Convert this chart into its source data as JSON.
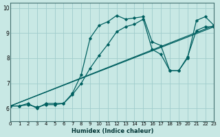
{
  "xlabel": "Humidex (Indice chaleur)",
  "xlim": [
    0,
    23
  ],
  "ylim": [
    5.5,
    10.2
  ],
  "xticks": [
    0,
    1,
    2,
    3,
    4,
    5,
    6,
    7,
    8,
    9,
    10,
    11,
    12,
    13,
    14,
    15,
    16,
    17,
    18,
    19,
    20,
    21,
    22,
    23
  ],
  "yticks": [
    6,
    7,
    8,
    9,
    10
  ],
  "bg_color": "#c8e8e4",
  "grid_color": "#a0cccc",
  "line_color": "#006060",
  "lines": [
    {
      "x": [
        0,
        1,
        2,
        3,
        4,
        5,
        6,
        7,
        8,
        9,
        10,
        11,
        12,
        13,
        14,
        15,
        16,
        17,
        18,
        19,
        20,
        21,
        22,
        23
      ],
      "y": [
        6.1,
        6.1,
        6.2,
        6.0,
        6.2,
        6.2,
        6.2,
        6.6,
        7.35,
        8.8,
        9.3,
        9.45,
        9.7,
        9.55,
        9.6,
        9.65,
        8.65,
        8.5,
        7.5,
        7.5,
        8.0,
        9.5,
        9.65,
        9.3
      ]
    },
    {
      "x": [
        0,
        1,
        2,
        3,
        4,
        5,
        6,
        7,
        8,
        9,
        10,
        11,
        12,
        13,
        14,
        15,
        16,
        17,
        18,
        19,
        20,
        21,
        22,
        23
      ],
      "y": [
        6.1,
        6.1,
        6.15,
        6.05,
        6.15,
        6.15,
        6.2,
        6.55,
        7.0,
        7.6,
        8.1,
        8.55,
        9.05,
        9.25,
        9.35,
        9.55,
        8.35,
        8.15,
        7.5,
        7.5,
        8.05,
        9.1,
        9.25,
        9.25
      ]
    },
    {
      "x": [
        0,
        7,
        18,
        23
      ],
      "y": [
        6.1,
        6.6,
        7.5,
        9.3
      ]
    },
    {
      "x": [
        0,
        7,
        18,
        23
      ],
      "y": [
        6.1,
        6.6,
        7.5,
        9.3
      ]
    }
  ]
}
